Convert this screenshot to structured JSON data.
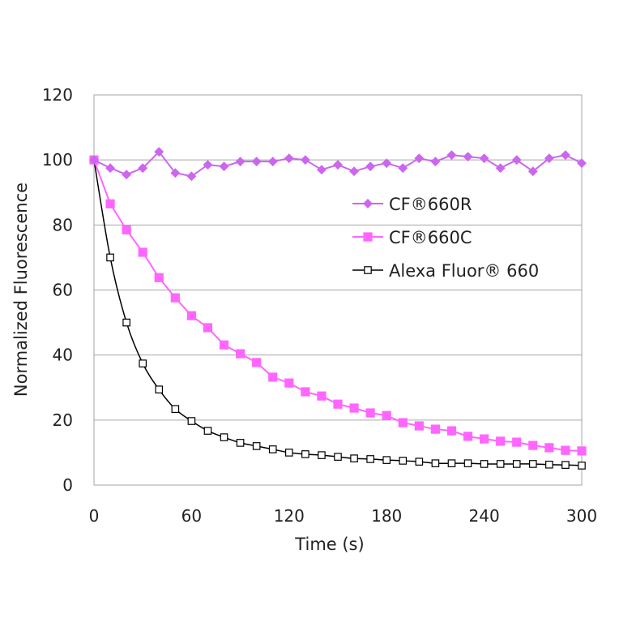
{
  "chart_data": {
    "type": "line",
    "title": "",
    "xlabel": "Time (s)",
    "ylabel": "Normalized  Fluorescence",
    "xlim": [
      0,
      300
    ],
    "ylim": [
      0,
      120
    ],
    "xticks": [
      0,
      60,
      120,
      180,
      240,
      300
    ],
    "yticks": [
      0,
      20,
      40,
      60,
      80,
      100,
      120
    ],
    "grid": "horizontal",
    "legend_position": "right-center",
    "x": [
      0,
      10,
      20,
      30,
      40,
      50,
      60,
      70,
      80,
      90,
      100,
      110,
      120,
      130,
      140,
      150,
      160,
      170,
      180,
      190,
      200,
      210,
      220,
      230,
      240,
      250,
      260,
      270,
      280,
      290,
      300
    ],
    "series": [
      {
        "name": "CF®660R",
        "color": "#cc66ee",
        "marker": "diamond",
        "smooth": false,
        "values": [
          100,
          97.5,
          95.5,
          97.5,
          102.5,
          96,
          95,
          98.5,
          98,
          99.5,
          99.5,
          99.5,
          100.5,
          100,
          97,
          98.5,
          96.5,
          98,
          99,
          97.5,
          100.5,
          99.5,
          101.5,
          101,
          100.5,
          97.5,
          100,
          96.5,
          100.5,
          101.5,
          99
        ]
      },
      {
        "name": "CF®660C",
        "color": "#ff66ff",
        "marker": "square-filled",
        "smooth": false,
        "values": [
          100,
          86.5,
          78.5,
          71.6,
          63.8,
          57.6,
          52.1,
          48.4,
          43.1,
          40.4,
          37.7,
          33.2,
          31.4,
          28.7,
          27.4,
          24.9,
          23.7,
          22.2,
          21.4,
          19.2,
          18.2,
          17.2,
          16.7,
          15.0,
          14.2,
          13.5,
          13.2,
          12.2,
          11.5,
          10.7,
          10.5
        ]
      },
      {
        "name": "Alexa Fluor®  660",
        "color": "#000000",
        "marker": "square-open",
        "smooth": true,
        "values": [
          100,
          70,
          50,
          37.4,
          29.4,
          23.4,
          19.7,
          16.7,
          14.7,
          13,
          12,
          11,
          10,
          9.5,
          9.2,
          8.7,
          8.2,
          8,
          7.7,
          7.5,
          7.2,
          6.7,
          6.7,
          6.7,
          6.5,
          6.5,
          6.5,
          6.5,
          6.3,
          6.2,
          6
        ]
      }
    ]
  }
}
